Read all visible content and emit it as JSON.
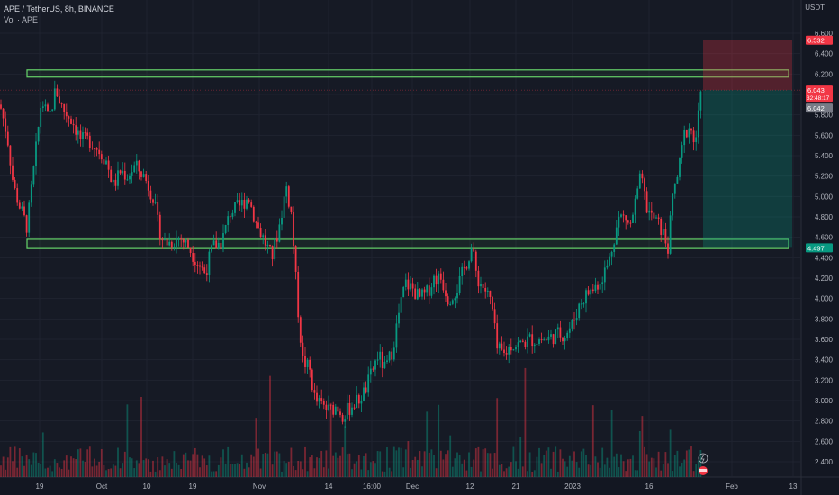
{
  "header": {
    "symbol_line": "APE / TetherUS, 8h, BINANCE",
    "volume_line": "Vol · APE"
  },
  "axis": {
    "currency": "USDT"
  },
  "chart_data": {
    "type": "candlestick",
    "title": "APE / TetherUS, 8h, BINANCE",
    "ylim": [
      2.25,
      6.75
    ],
    "y_ticks": [
      6.6,
      6.4,
      6.2,
      6.0,
      5.8,
      5.6,
      5.4,
      5.2,
      5.0,
      4.8,
      4.6,
      4.4,
      4.2,
      4.0,
      3.8,
      3.6,
      3.4,
      3.2,
      3.0,
      2.8,
      2.6,
      2.4
    ],
    "x_tick_labels": [
      "19",
      "Oct",
      "10",
      "19",
      "Nov",
      "14",
      "16:00",
      "Dec",
      "12",
      "21",
      "2023",
      "16",
      "Feb",
      "13"
    ],
    "price_tags": [
      {
        "label": "6.532",
        "value": 6.532,
        "color": "#f23645"
      },
      {
        "label": "6.043",
        "value": 6.043,
        "color": "#f23645",
        "extra": "32:48:17"
      },
      {
        "label": "6.042",
        "value": 6.042,
        "color": "#787b86"
      },
      {
        "label": "4.497",
        "value": 4.497,
        "color": "#089981"
      }
    ],
    "zones": [
      {
        "name": "upper-resistance-zone",
        "low": 6.17,
        "high": 6.24
      },
      {
        "name": "lower-support-zone",
        "low": 4.49,
        "high": 4.58
      }
    ],
    "position": {
      "type": "short",
      "entry": 6.043,
      "stop": 6.532,
      "target": 4.497
    },
    "price_path": [
      [
        0,
        5.9
      ],
      [
        8,
        5.6
      ],
      [
        15,
        5.1
      ],
      [
        22,
        4.9
      ],
      [
        30,
        4.7
      ],
      [
        38,
        5.3
      ],
      [
        46,
        5.95
      ],
      [
        54,
        5.75
      ],
      [
        62,
        6.05
      ],
      [
        70,
        5.85
      ],
      [
        80,
        5.75
      ],
      [
        90,
        5.55
      ],
      [
        100,
        5.55
      ],
      [
        110,
        5.45
      ],
      [
        118,
        5.35
      ],
      [
        126,
        5.1
      ],
      [
        134,
        5.25
      ],
      [
        142,
        5.2
      ],
      [
        150,
        5.3
      ],
      [
        160,
        5.2
      ],
      [
        170,
        5.0
      ],
      [
        176,
        4.7
      ],
      [
        182,
        4.55
      ],
      [
        190,
        4.55
      ],
      [
        200,
        4.6
      ],
      [
        210,
        4.5
      ],
      [
        220,
        4.35
      ],
      [
        228,
        4.25
      ],
      [
        236,
        4.5
      ],
      [
        246,
        4.55
      ],
      [
        256,
        4.85
      ],
      [
        266,
        4.9
      ],
      [
        276,
        5.0
      ],
      [
        284,
        4.75
      ],
      [
        292,
        4.6
      ],
      [
        302,
        4.4
      ],
      [
        310,
        4.7
      ],
      [
        318,
        5.1
      ],
      [
        324,
        4.8
      ],
      [
        330,
        4.0
      ],
      [
        336,
        3.4
      ],
      [
        344,
        3.3
      ],
      [
        350,
        3.0
      ],
      [
        358,
        2.95
      ],
      [
        366,
        2.9
      ],
      [
        374,
        2.95
      ],
      [
        382,
        2.85
      ],
      [
        390,
        2.95
      ],
      [
        398,
        3.0
      ],
      [
        406,
        3.1
      ],
      [
        414,
        3.3
      ],
      [
        420,
        3.45
      ],
      [
        428,
        3.3
      ],
      [
        436,
        3.5
      ],
      [
        442,
        3.8
      ],
      [
        450,
        4.15
      ],
      [
        458,
        4.1
      ],
      [
        466,
        4.0
      ],
      [
        474,
        4.05
      ],
      [
        482,
        4.2
      ],
      [
        490,
        4.2
      ],
      [
        498,
        4.0
      ],
      [
        508,
        4.1
      ],
      [
        516,
        4.3
      ],
      [
        524,
        4.5
      ],
      [
        530,
        4.2
      ],
      [
        538,
        4.1
      ],
      [
        546,
        3.95
      ],
      [
        552,
        3.5
      ],
      [
        560,
        3.45
      ],
      [
        568,
        3.55
      ],
      [
        578,
        3.55
      ],
      [
        588,
        3.6
      ],
      [
        598,
        3.6
      ],
      [
        608,
        3.6
      ],
      [
        618,
        3.65
      ],
      [
        628,
        3.65
      ],
      [
        636,
        3.75
      ],
      [
        644,
        3.95
      ],
      [
        652,
        4.05
      ],
      [
        660,
        4.1
      ],
      [
        668,
        4.2
      ],
      [
        676,
        4.35
      ],
      [
        682,
        4.6
      ],
      [
        688,
        4.8
      ],
      [
        694,
        4.8
      ],
      [
        700,
        4.7
      ],
      [
        706,
        4.95
      ],
      [
        712,
        5.2
      ],
      [
        718,
        4.9
      ],
      [
        724,
        4.8
      ],
      [
        730,
        4.75
      ],
      [
        736,
        4.65
      ],
      [
        742,
        4.5
      ],
      [
        748,
        5.05
      ],
      [
        754,
        5.25
      ],
      [
        760,
        5.6
      ],
      [
        766,
        5.7
      ],
      [
        772,
        5.5
      ],
      [
        778,
        5.95
      ],
      [
        782,
        6.043
      ]
    ],
    "volume_ylim": [
      0,
      1
    ],
    "grid": true,
    "legend": "none"
  }
}
